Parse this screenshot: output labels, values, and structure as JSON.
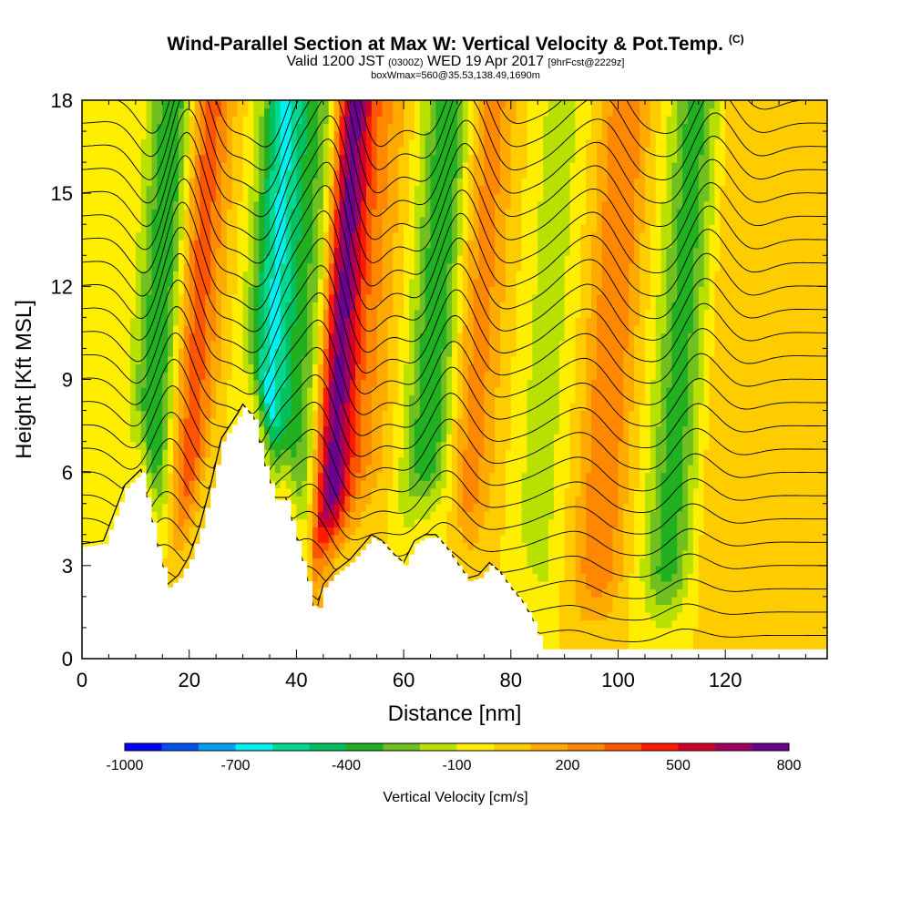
{
  "header": {
    "title": "Wind-Parallel Section at Max W: Vertical Velocity & Pot.Temp.",
    "copyright": "(C)",
    "valid_prefix": "Valid 1200 JST",
    "valid_utc": "(0300Z)",
    "valid_date": "WED 19 Apr 2017",
    "forecast": "[9hrFcst@2229z]",
    "box_info": "boxWmax=560@35.53,138.49,1690m"
  },
  "chart_data": {
    "type": "heatmap",
    "xlabel": "Distance [nm]",
    "ylabel": "Height [Kft MSL]",
    "xlim": [
      0,
      139
    ],
    "ylim": [
      0,
      18
    ],
    "x_ticks": [
      "0",
      "20",
      "40",
      "60",
      "80",
      "100",
      "120"
    ],
    "y_ticks": [
      "0",
      "3",
      "6",
      "9",
      "12",
      "15",
      "18"
    ],
    "colorbar": {
      "label": "Vertical Velocity [cm/s]",
      "tick_labels": [
        "-1000",
        "-700",
        "-400",
        "-100",
        "200",
        "500",
        "800"
      ],
      "bins": [
        -1000,
        -900,
        -800,
        -700,
        -600,
        -500,
        -400,
        -300,
        -200,
        -100,
        0,
        100,
        200,
        300,
        400,
        500,
        600,
        700,
        800
      ],
      "colors": [
        "#0000ff",
        "#0050f0",
        "#00a0f0",
        "#00f0f0",
        "#00d890",
        "#00c060",
        "#20b020",
        "#70c020",
        "#b8e000",
        "#ffee00",
        "#ffcc00",
        "#ffaa00",
        "#ff8800",
        "#ff5500",
        "#ff1a00",
        "#d00028",
        "#a00060",
        "#6a0090"
      ]
    },
    "wave_features": [
      {
        "type": "downdraft",
        "x_center": 14,
        "peak_w": -450
      },
      {
        "type": "updraft",
        "x_center": 20,
        "peak_w": 400
      },
      {
        "type": "downdraft",
        "x_center": 35,
        "peak_w": -650
      },
      {
        "type": "updraft",
        "x_center": 40,
        "peak_w": 250
      },
      {
        "type": "downdraft",
        "x_center": 42,
        "peak_w": -500
      },
      {
        "type": "updraft",
        "x_center": 47,
        "peak_w": 800
      },
      {
        "type": "updraft",
        "x_center": 53,
        "peak_w": 200
      },
      {
        "type": "downdraft",
        "x_center": 65,
        "peak_w": -400
      },
      {
        "type": "updraft",
        "x_center": 73,
        "peak_w": 250
      },
      {
        "type": "downdraft",
        "x_center": 86,
        "peak_w": -150
      },
      {
        "type": "updraft",
        "x_center": 98,
        "peak_w": 300
      },
      {
        "type": "downdraft",
        "x_center": 111,
        "peak_w": -350
      },
      {
        "type": "updraft",
        "x_center": 120,
        "peak_w": 100
      }
    ],
    "terrain_kft": [
      [
        0,
        3.6
      ],
      [
        4,
        3.7
      ],
      [
        8,
        5.5
      ],
      [
        11,
        6.0
      ],
      [
        14,
        3.6
      ],
      [
        16,
        2.3
      ],
      [
        18,
        2.6
      ],
      [
        20,
        3.2
      ],
      [
        22,
        4.2
      ],
      [
        24,
        5.5
      ],
      [
        26,
        7.0
      ],
      [
        29,
        7.8
      ],
      [
        30,
        8.1
      ],
      [
        32,
        7.7
      ],
      [
        34,
        6.2
      ],
      [
        36,
        5.1
      ],
      [
        38,
        5.1
      ],
      [
        40,
        3.8
      ],
      [
        42,
        2.5
      ],
      [
        43.5,
        1.3
      ],
      [
        45,
        2.3
      ],
      [
        47,
        2.7
      ],
      [
        50,
        3.1
      ],
      [
        52,
        3.5
      ],
      [
        54,
        3.9
      ],
      [
        56,
        3.7
      ],
      [
        58,
        3.3
      ],
      [
        60,
        3.0
      ],
      [
        62,
        3.7
      ],
      [
        64,
        3.9
      ],
      [
        66,
        3.9
      ],
      [
        68,
        3.5
      ],
      [
        70,
        3.0
      ],
      [
        72,
        2.5
      ],
      [
        74,
        2.6
      ],
      [
        76,
        3.0
      ],
      [
        78,
        2.7
      ],
      [
        80,
        2.2
      ],
      [
        82,
        1.8
      ],
      [
        84,
        1.2
      ],
      [
        86,
        0.3
      ],
      [
        139,
        0.3
      ]
    ]
  }
}
